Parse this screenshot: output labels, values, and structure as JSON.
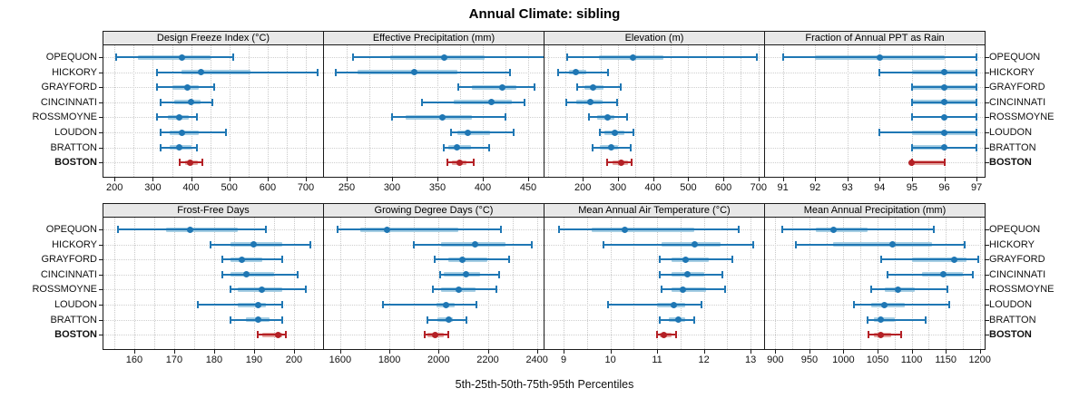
{
  "title": "Annual Climate: sibling",
  "caption": "5th-25th-50th-75th-95th Percentiles",
  "sites": [
    "OPEQUON",
    "HICKORY",
    "GRAYFORD",
    "CINCINNATI",
    "ROSSMOYNE",
    "LOUDON",
    "BRATTON",
    "BOSTON"
  ],
  "highlight_site": "BOSTON",
  "colors": {
    "blue": "#1f77b4",
    "blue_band": "#a6cee3",
    "red": "#b42025",
    "red_band": "#e5a7a2",
    "strip_bg": "#e8e8e8",
    "panel_border": "#1a1a1a",
    "grid": "#c9c9c9"
  },
  "percentiles": [
    5,
    25,
    50,
    75,
    95
  ],
  "chart_data": [
    {
      "type": "dot-interval",
      "title": "Design Freeze Index (°C)",
      "ticks": [
        200,
        300,
        400,
        500,
        600,
        700
      ],
      "domain": [
        171,
        745
      ],
      "minor_grid": true,
      "series": [
        {
          "site": "OPEQUON",
          "values": [
            205,
            260,
            375,
            450,
            510
          ]
        },
        {
          "site": "HICKORY",
          "values": [
            310,
            375,
            425,
            555,
            730
          ]
        },
        {
          "site": "GRAYFORD",
          "values": [
            310,
            350,
            390,
            420,
            460
          ]
        },
        {
          "site": "CINCINNATI",
          "values": [
            320,
            355,
            400,
            425,
            455
          ]
        },
        {
          "site": "ROSSMOYNE",
          "values": [
            310,
            340,
            370,
            395,
            415
          ]
        },
        {
          "site": "LOUDON",
          "values": [
            320,
            345,
            375,
            420,
            490
          ]
        },
        {
          "site": "BRATTON",
          "values": [
            320,
            345,
            370,
            400,
            415
          ]
        },
        {
          "site": "BOSTON",
          "values": [
            370,
            385,
            398,
            418,
            430
          ]
        }
      ]
    },
    {
      "type": "dot-interval",
      "title": "Effective Precipitation (mm)",
      "ticks": [
        250,
        300,
        350,
        400,
        450
      ],
      "domain": [
        225,
        467
      ],
      "minor_grid": true,
      "series": [
        {
          "site": "OPEQUON",
          "values": [
            257,
            298,
            357,
            402,
            470
          ]
        },
        {
          "site": "HICKORY",
          "values": [
            238,
            262,
            324,
            372,
            430
          ]
        },
        {
          "site": "GRAYFORD",
          "values": [
            373,
            388,
            421,
            437,
            457
          ]
        },
        {
          "site": "CINCINNATI",
          "values": [
            333,
            368,
            409,
            432,
            446
          ]
        },
        {
          "site": "ROSSMOYNE",
          "values": [
            300,
            315,
            355,
            388,
            425
          ]
        },
        {
          "site": "LOUDON",
          "values": [
            365,
            372,
            383,
            408,
            434
          ]
        },
        {
          "site": "BRATTON",
          "values": [
            357,
            362,
            371,
            387,
            407
          ]
        },
        {
          "site": "BOSTON",
          "values": [
            361,
            366,
            374,
            382,
            390
          ]
        }
      ]
    },
    {
      "type": "dot-interval",
      "title": "Elevation (m)",
      "ticks": [
        200,
        300,
        400,
        500,
        600,
        700
      ],
      "domain": [
        91,
        716
      ],
      "minor_grid": true,
      "series": [
        {
          "site": "OPEQUON",
          "values": [
            155,
            245,
            342,
            430,
            695
          ]
        },
        {
          "site": "HICKORY",
          "values": [
            130,
            160,
            180,
            210,
            272
          ]
        },
        {
          "site": "GRAYFORD",
          "values": [
            185,
            205,
            230,
            260,
            308
          ]
        },
        {
          "site": "CINCINNATI",
          "values": [
            152,
            180,
            222,
            255,
            298
          ]
        },
        {
          "site": "ROSSMOYNE",
          "values": [
            218,
            240,
            270,
            290,
            325
          ]
        },
        {
          "site": "LOUDON",
          "values": [
            248,
            262,
            292,
            318,
            345
          ]
        },
        {
          "site": "BRATTON",
          "values": [
            228,
            248,
            280,
            300,
            335
          ]
        },
        {
          "site": "BOSTON",
          "values": [
            268,
            285,
            310,
            330,
            340
          ]
        }
      ]
    },
    {
      "type": "dot-interval",
      "title": "Fraction of Annual PPT as Rain",
      "ticks": [
        91,
        92,
        93,
        94,
        95,
        96,
        97
      ],
      "domain": [
        90.45,
        97.25
      ],
      "minor_grid": false,
      "series": [
        {
          "site": "OPEQUON",
          "values": [
            91,
            92,
            94,
            96,
            97
          ]
        },
        {
          "site": "HICKORY",
          "values": [
            94,
            95,
            96,
            97,
            97
          ]
        },
        {
          "site": "GRAYFORD",
          "values": [
            95,
            95,
            96,
            97,
            97
          ]
        },
        {
          "site": "CINCINNATI",
          "values": [
            95,
            95,
            96,
            97,
            97
          ]
        },
        {
          "site": "ROSSMOYNE",
          "values": [
            95,
            96,
            96,
            96,
            97
          ]
        },
        {
          "site": "LOUDON",
          "values": [
            94,
            95,
            96,
            97,
            97
          ]
        },
        {
          "site": "BRATTON",
          "values": [
            95,
            95,
            96,
            96,
            97
          ]
        },
        {
          "site": "BOSTON",
          "values": [
            95,
            95,
            95,
            96,
            96
          ]
        }
      ]
    },
    {
      "type": "dot-interval",
      "title": "Frost-Free Days",
      "ticks": [
        160,
        170,
        180,
        190,
        200
      ],
      "domain": [
        152.3,
        207.3
      ],
      "minor_grid": true,
      "series": [
        {
          "site": "OPEQUON",
          "values": [
            156,
            168,
            174,
            186,
            193
          ]
        },
        {
          "site": "HICKORY",
          "values": [
            179,
            184,
            190,
            197,
            204
          ]
        },
        {
          "site": "GRAYFORD",
          "values": [
            182,
            184,
            187,
            192,
            197
          ]
        },
        {
          "site": "CINCINNATI",
          "values": [
            182,
            184,
            188,
            195,
            201
          ]
        },
        {
          "site": "ROSSMOYNE",
          "values": [
            184,
            186,
            192,
            197,
            203
          ]
        },
        {
          "site": "LOUDON",
          "values": [
            176,
            186,
            191,
            193,
            197
          ]
        },
        {
          "site": "BRATTON",
          "values": [
            184,
            188,
            191,
            194,
            197
          ]
        },
        {
          "site": "BOSTON",
          "values": [
            191,
            192,
            196,
            197,
            198
          ]
        }
      ]
    },
    {
      "type": "dot-interval",
      "title": "Growing Degree Days (°C)",
      "ticks": [
        1600,
        1800,
        2000,
        2200,
        2400
      ],
      "domain": [
        1534,
        2427
      ],
      "minor_grid": true,
      "series": [
        {
          "site": "OPEQUON",
          "values": [
            1590,
            1680,
            1790,
            2080,
            2255
          ]
        },
        {
          "site": "HICKORY",
          "values": [
            1900,
            2010,
            2150,
            2270,
            2380
          ]
        },
        {
          "site": "GRAYFORD",
          "values": [
            1985,
            2040,
            2095,
            2200,
            2285
          ]
        },
        {
          "site": "CINCINNATI",
          "values": [
            2005,
            2020,
            2110,
            2170,
            2245
          ]
        },
        {
          "site": "ROSSMOYNE",
          "values": [
            1975,
            2010,
            2080,
            2150,
            2235
          ]
        },
        {
          "site": "LOUDON",
          "values": [
            1775,
            1990,
            2030,
            2065,
            2155
          ]
        },
        {
          "site": "BRATTON",
          "values": [
            1955,
            1995,
            2040,
            2060,
            2115
          ]
        },
        {
          "site": "BOSTON",
          "values": [
            1945,
            1955,
            1985,
            2020,
            2040
          ]
        }
      ]
    },
    {
      "type": "dot-interval",
      "title": "Mean Annual Air Temperature (°C)",
      "ticks": [
        9,
        10,
        11,
        12,
        13
      ],
      "domain": [
        8.59,
        13.29
      ],
      "minor_grid": true,
      "series": [
        {
          "site": "OPEQUON",
          "values": [
            8.9,
            9.6,
            10.3,
            11.8,
            12.75
          ]
        },
        {
          "site": "HICKORY",
          "values": [
            9.85,
            11.1,
            11.8,
            12.35,
            13.05
          ]
        },
        {
          "site": "GRAYFORD",
          "values": [
            11.05,
            11.3,
            11.6,
            12.1,
            12.6
          ]
        },
        {
          "site": "CINCINNATI",
          "values": [
            11.05,
            11.3,
            11.65,
            12.0,
            12.4
          ]
        },
        {
          "site": "ROSSMOYNE",
          "values": [
            11.1,
            11.3,
            11.55,
            12.05,
            12.45
          ]
        },
        {
          "site": "LOUDON",
          "values": [
            9.95,
            11.0,
            11.35,
            11.6,
            11.95
          ]
        },
        {
          "site": "BRATTON",
          "values": [
            11.05,
            11.25,
            11.45,
            11.6,
            11.8
          ]
        },
        {
          "site": "BOSTON",
          "values": [
            11.0,
            11.05,
            11.15,
            11.3,
            11.4
          ]
        }
      ]
    },
    {
      "type": "dot-interval",
      "title": "Mean Annual Precipitation (mm)",
      "ticks": [
        900,
        950,
        1000,
        1050,
        1100,
        1150,
        1200
      ],
      "domain": [
        885,
        1207
      ],
      "minor_grid": true,
      "series": [
        {
          "site": "OPEQUON",
          "values": [
            910,
            960,
            985,
            1035,
            1133
          ]
        },
        {
          "site": "HICKORY",
          "values": [
            930,
            985,
            1072,
            1130,
            1178
          ]
        },
        {
          "site": "GRAYFORD",
          "values": [
            1055,
            1100,
            1162,
            1180,
            1198
          ]
        },
        {
          "site": "CINCINNATI",
          "values": [
            1065,
            1115,
            1147,
            1175,
            1190
          ]
        },
        {
          "site": "ROSSMOYNE",
          "values": [
            1040,
            1060,
            1080,
            1105,
            1153
          ]
        },
        {
          "site": "LOUDON",
          "values": [
            1015,
            1040,
            1060,
            1090,
            1155
          ]
        },
        {
          "site": "BRATTON",
          "values": [
            1035,
            1045,
            1055,
            1075,
            1120
          ]
        },
        {
          "site": "BOSTON",
          "values": [
            1037,
            1045,
            1055,
            1070,
            1085
          ]
        }
      ]
    }
  ]
}
